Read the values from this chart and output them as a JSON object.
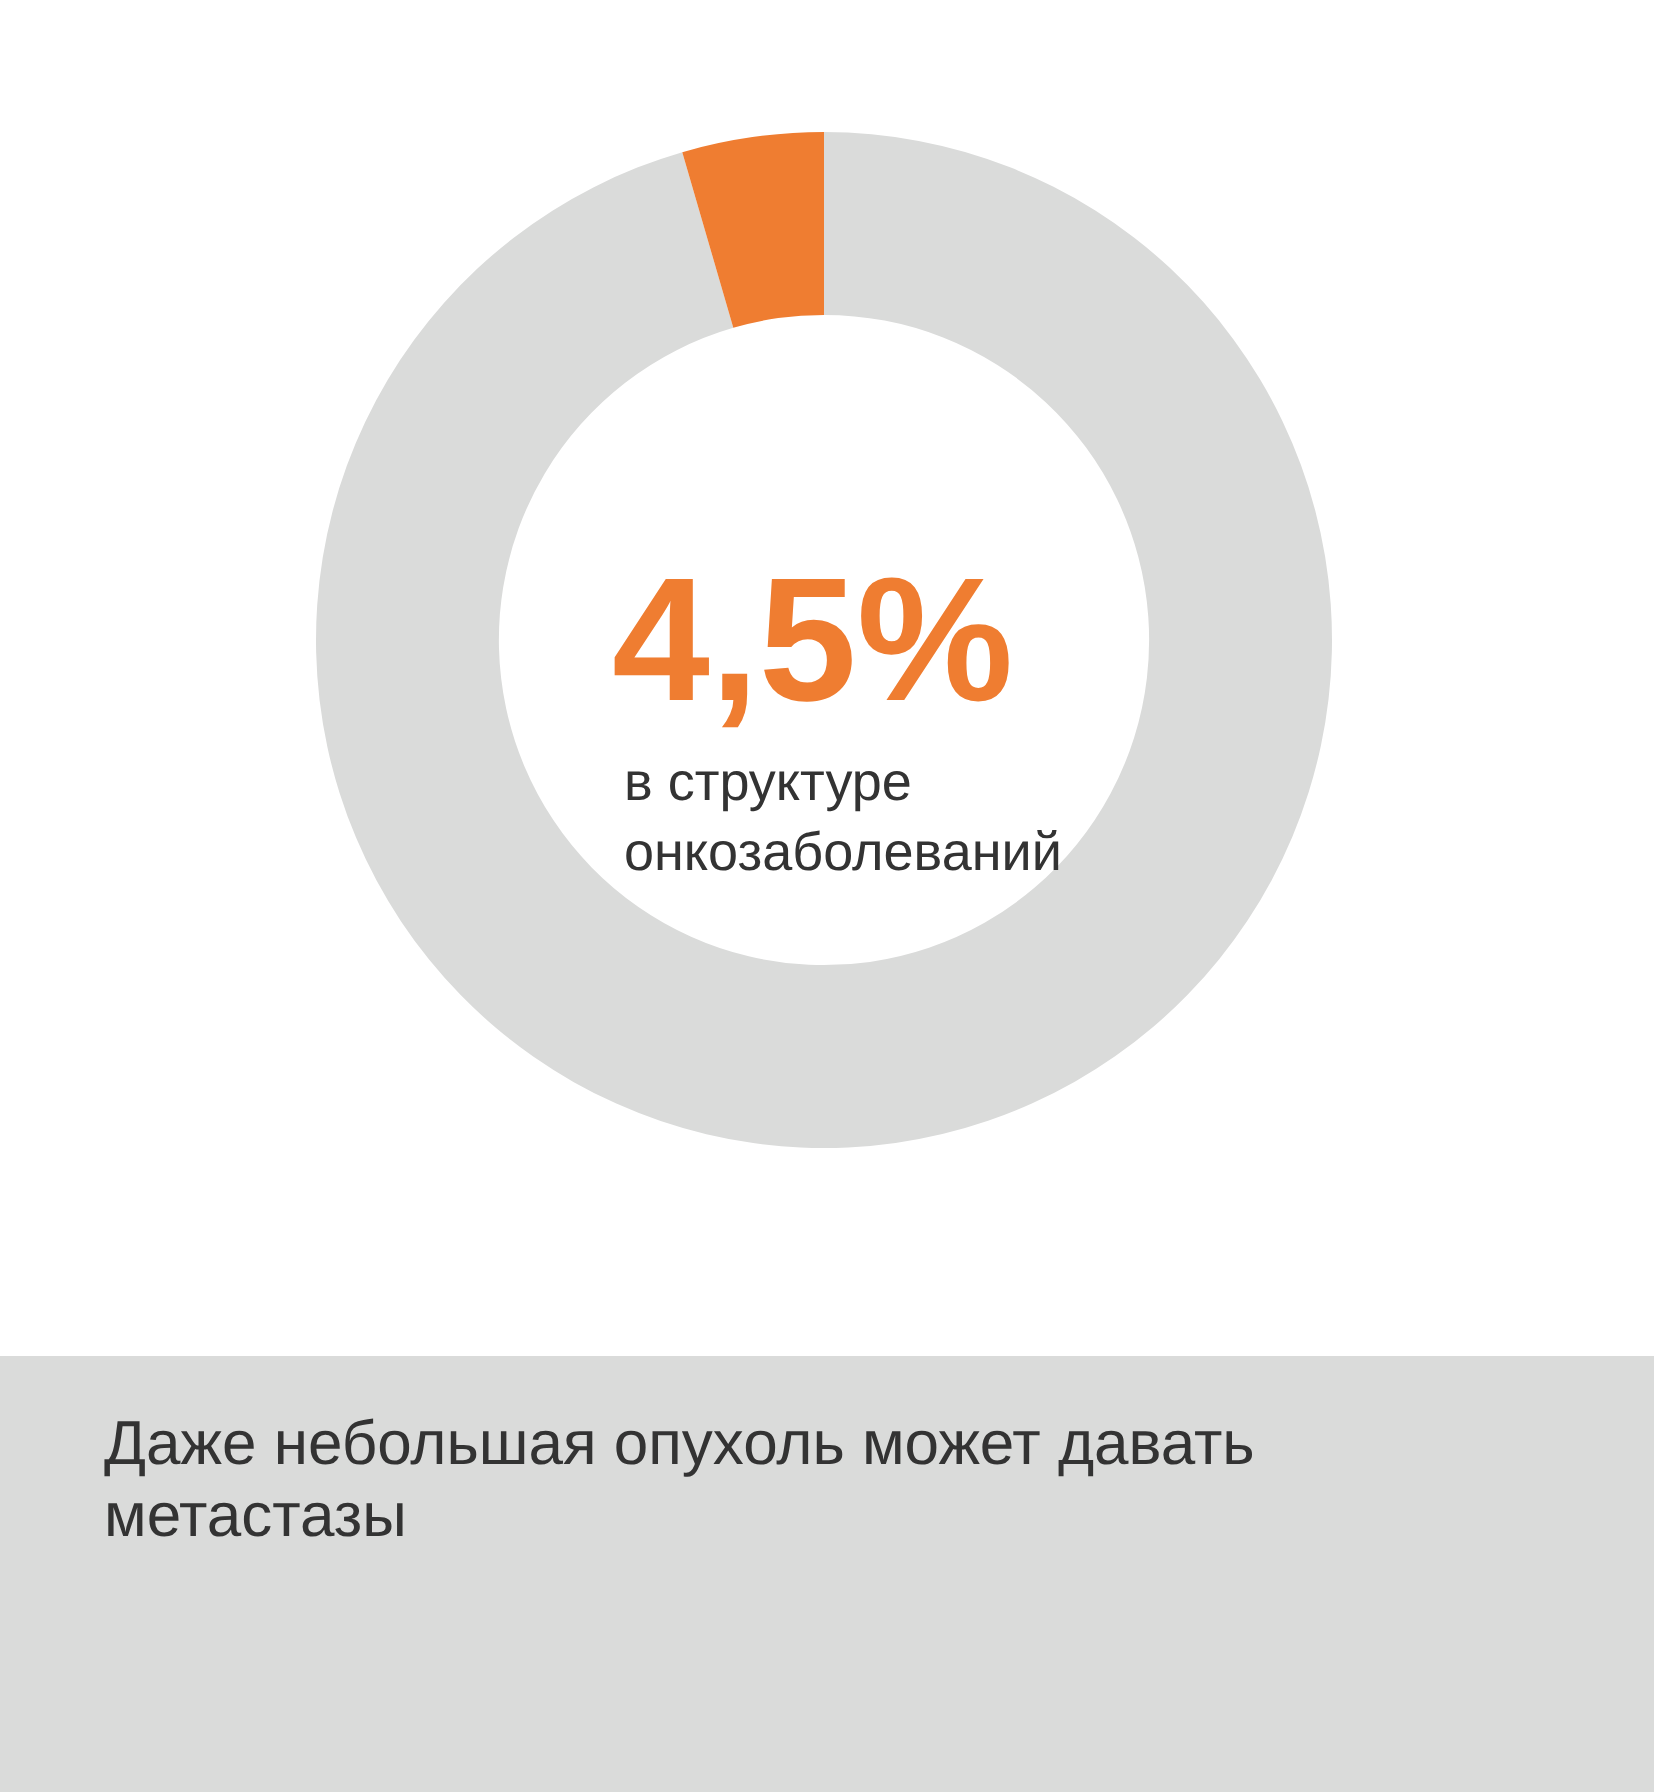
{
  "chart_data": {
    "type": "donut",
    "categories": [
      null,
      null
    ],
    "values": [
      95.5,
      4.5
    ],
    "colors": [
      "#dadbda",
      "#ef7d31"
    ],
    "legend": false,
    "annotations": [
      "4,5%",
      "в структуре онкозаболеваний",
      "Даже небольшая опухоль может давать метастазы"
    ]
  }
}
